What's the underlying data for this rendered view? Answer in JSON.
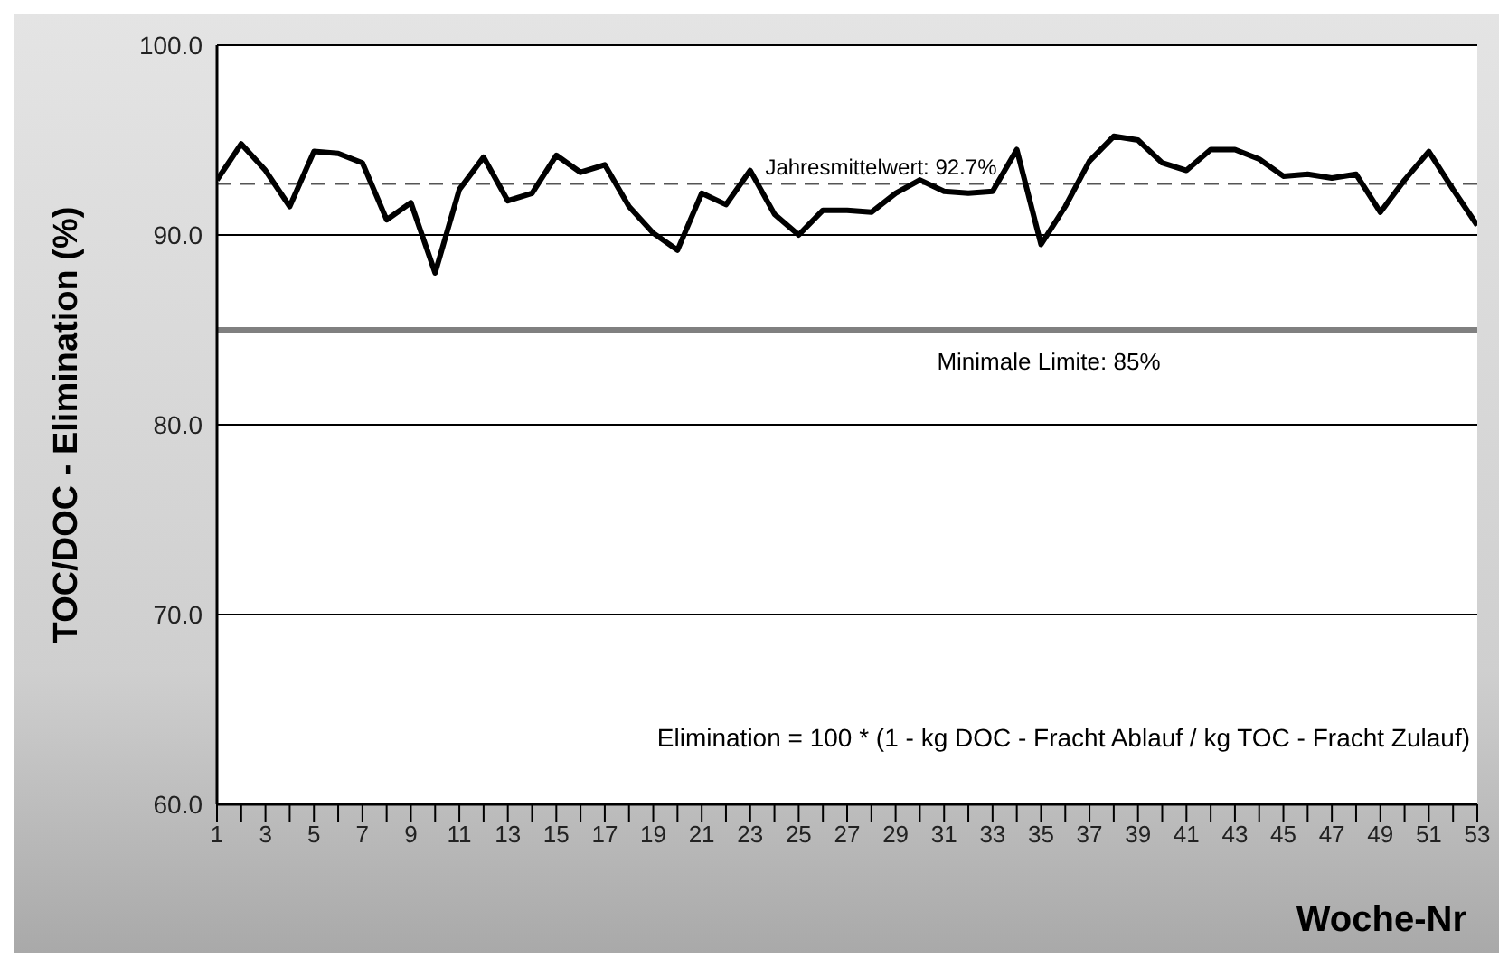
{
  "chart_data": {
    "type": "line",
    "xlabel": "Woche-Nr",
    "ylabel": "TOC/DOC - Elimination (%)",
    "x": [
      1,
      2,
      3,
      4,
      5,
      6,
      7,
      8,
      9,
      10,
      11,
      12,
      13,
      14,
      15,
      16,
      17,
      18,
      19,
      20,
      21,
      22,
      23,
      24,
      25,
      26,
      27,
      28,
      29,
      30,
      31,
      32,
      33,
      34,
      35,
      36,
      37,
      38,
      39,
      40,
      41,
      42,
      43,
      44,
      45,
      46,
      47,
      48,
      49,
      50,
      51,
      52,
      53
    ],
    "series": [
      {
        "color": "#000000",
        "values": [
          92.9,
          94.8,
          93.4,
          91.5,
          94.4,
          94.3,
          93.8,
          90.8,
          91.7,
          88.0,
          92.4,
          94.1,
          91.8,
          92.2,
          94.2,
          93.3,
          93.7,
          91.5,
          90.1,
          89.2,
          92.2,
          91.6,
          93.4,
          91.1,
          90.0,
          91.3,
          91.3,
          91.2,
          92.2,
          92.9,
          92.3,
          92.2,
          92.3,
          94.5,
          89.5,
          91.5,
          93.9,
          95.2,
          95.0,
          93.8,
          93.4,
          94.5,
          94.5,
          94.0,
          93.1,
          93.2,
          93.0,
          93.2,
          91.2,
          92.9,
          94.4,
          92.4,
          90.5
        ]
      }
    ],
    "xlim": [
      1,
      53
    ],
    "xticks": [
      1,
      {
        "value": 2,
        "label": null
      },
      3,
      {
        "value": 4,
        "label": null
      },
      5,
      {
        "value": 6,
        "label": null
      },
      7,
      {
        "value": 8,
        "label": null
      },
      9,
      {
        "value": 10,
        "label": null
      },
      11,
      {
        "value": 12,
        "label": null
      },
      13,
      {
        "value": 14,
        "label": null
      },
      15,
      {
        "value": 16,
        "label": null
      },
      17,
      {
        "value": 18,
        "label": null
      },
      19,
      {
        "value": 20,
        "label": null
      },
      21,
      {
        "value": 22,
        "label": null
      },
      23,
      {
        "value": 24,
        "label": null
      },
      25,
      {
        "value": 26,
        "label": null
      },
      27,
      {
        "value": 28,
        "label": null
      },
      29,
      {
        "value": 30,
        "label": null
      },
      31,
      {
        "value": 32,
        "label": null
      },
      33,
      {
        "value": 34,
        "label": null
      },
      35,
      {
        "value": 36,
        "label": null
      },
      37,
      {
        "value": 38,
        "label": null
      },
      39,
      {
        "value": 40,
        "label": null
      },
      41,
      {
        "value": 42,
        "label": null
      },
      43,
      {
        "value": 44,
        "label": null
      },
      45,
      {
        "value": 46,
        "label": null
      },
      47,
      {
        "value": 48,
        "label": null
      },
      49,
      {
        "value": 50,
        "label": null
      },
      51,
      {
        "value": 52,
        "label": null
      },
      53
    ],
    "ylim": [
      60,
      100
    ],
    "yticks": [
      {
        "value": 60,
        "label": "60.0"
      },
      {
        "value": 70,
        "label": "70.0"
      },
      {
        "value": 80,
        "label": "80.0"
      },
      {
        "value": 90,
        "label": "90.0"
      },
      {
        "value": 100,
        "label": "100.0"
      }
    ],
    "grid": "y",
    "marker": "none",
    "line_style": "solid",
    "ref_lines": [
      {
        "axis": "y",
        "value": 92.7,
        "label": "Jahresmittelwert: 92.7%",
        "color": "#555555",
        "line_style": "dashed"
      },
      {
        "axis": "y",
        "value": 85,
        "label": "Minimale Limite: 85%",
        "color": "#808080",
        "line_style": "solid"
      }
    ],
    "annotations": [
      "Elimination = 100 * (1 - kg DOC - Fracht Ablauf / kg TOC - Fracht Zulauf)"
    ]
  }
}
